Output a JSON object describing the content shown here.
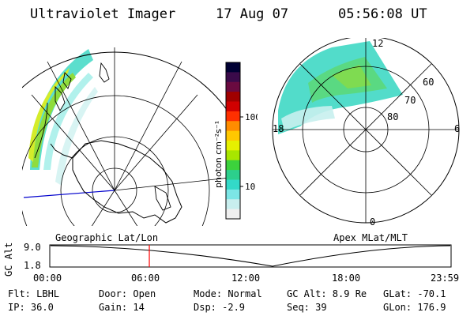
{
  "header": {
    "instrument": "Ultraviolet Imager",
    "date": "17 Aug 07",
    "time": "05:56:08 UT"
  },
  "colorbar": {
    "unit_label": "photon cm⁻²s⁻¹",
    "ticks": [
      "100",
      "10"
    ],
    "colors": [
      "#000033",
      "#3a0a4a",
      "#6a0a40",
      "#a00000",
      "#d00000",
      "#ff3000",
      "#ff8c00",
      "#ffc800",
      "#e6f000",
      "#a8e600",
      "#3cd23c",
      "#2ccf8c",
      "#33d9c8",
      "#7ce6e6",
      "#c8eeee",
      "#f0f0f0"
    ]
  },
  "polar": {
    "mlt_labels": [
      "12",
      "18",
      "6",
      "0"
    ],
    "lat_labels": [
      "60",
      "70",
      "80"
    ]
  },
  "timeline": {
    "left_label": "Geographic Lat/Lon",
    "right_label": "Apex MLat/MLT",
    "axis_label": "GC Alt",
    "y_ticks": [
      "9.0",
      "1.8"
    ],
    "x_ticks": [
      "00:00",
      "06:00",
      "12:00",
      "18:00",
      "23:59"
    ],
    "current_time_hours": 5.93,
    "colors": {
      "marker": "#ff0000"
    }
  },
  "info": {
    "flt": "Flt: LBHL",
    "door": "Door: Open",
    "mode": "Mode: Normal",
    "gc_alt": "GC Alt: 8.9 Re",
    "glat": "GLat: -70.1",
    "ip": "IP: 36.0",
    "gain": "Gain: 14",
    "dsp": "Dsp:   -2.9",
    "seq": "Seq: 39",
    "glon": "GLon: 176.9"
  }
}
